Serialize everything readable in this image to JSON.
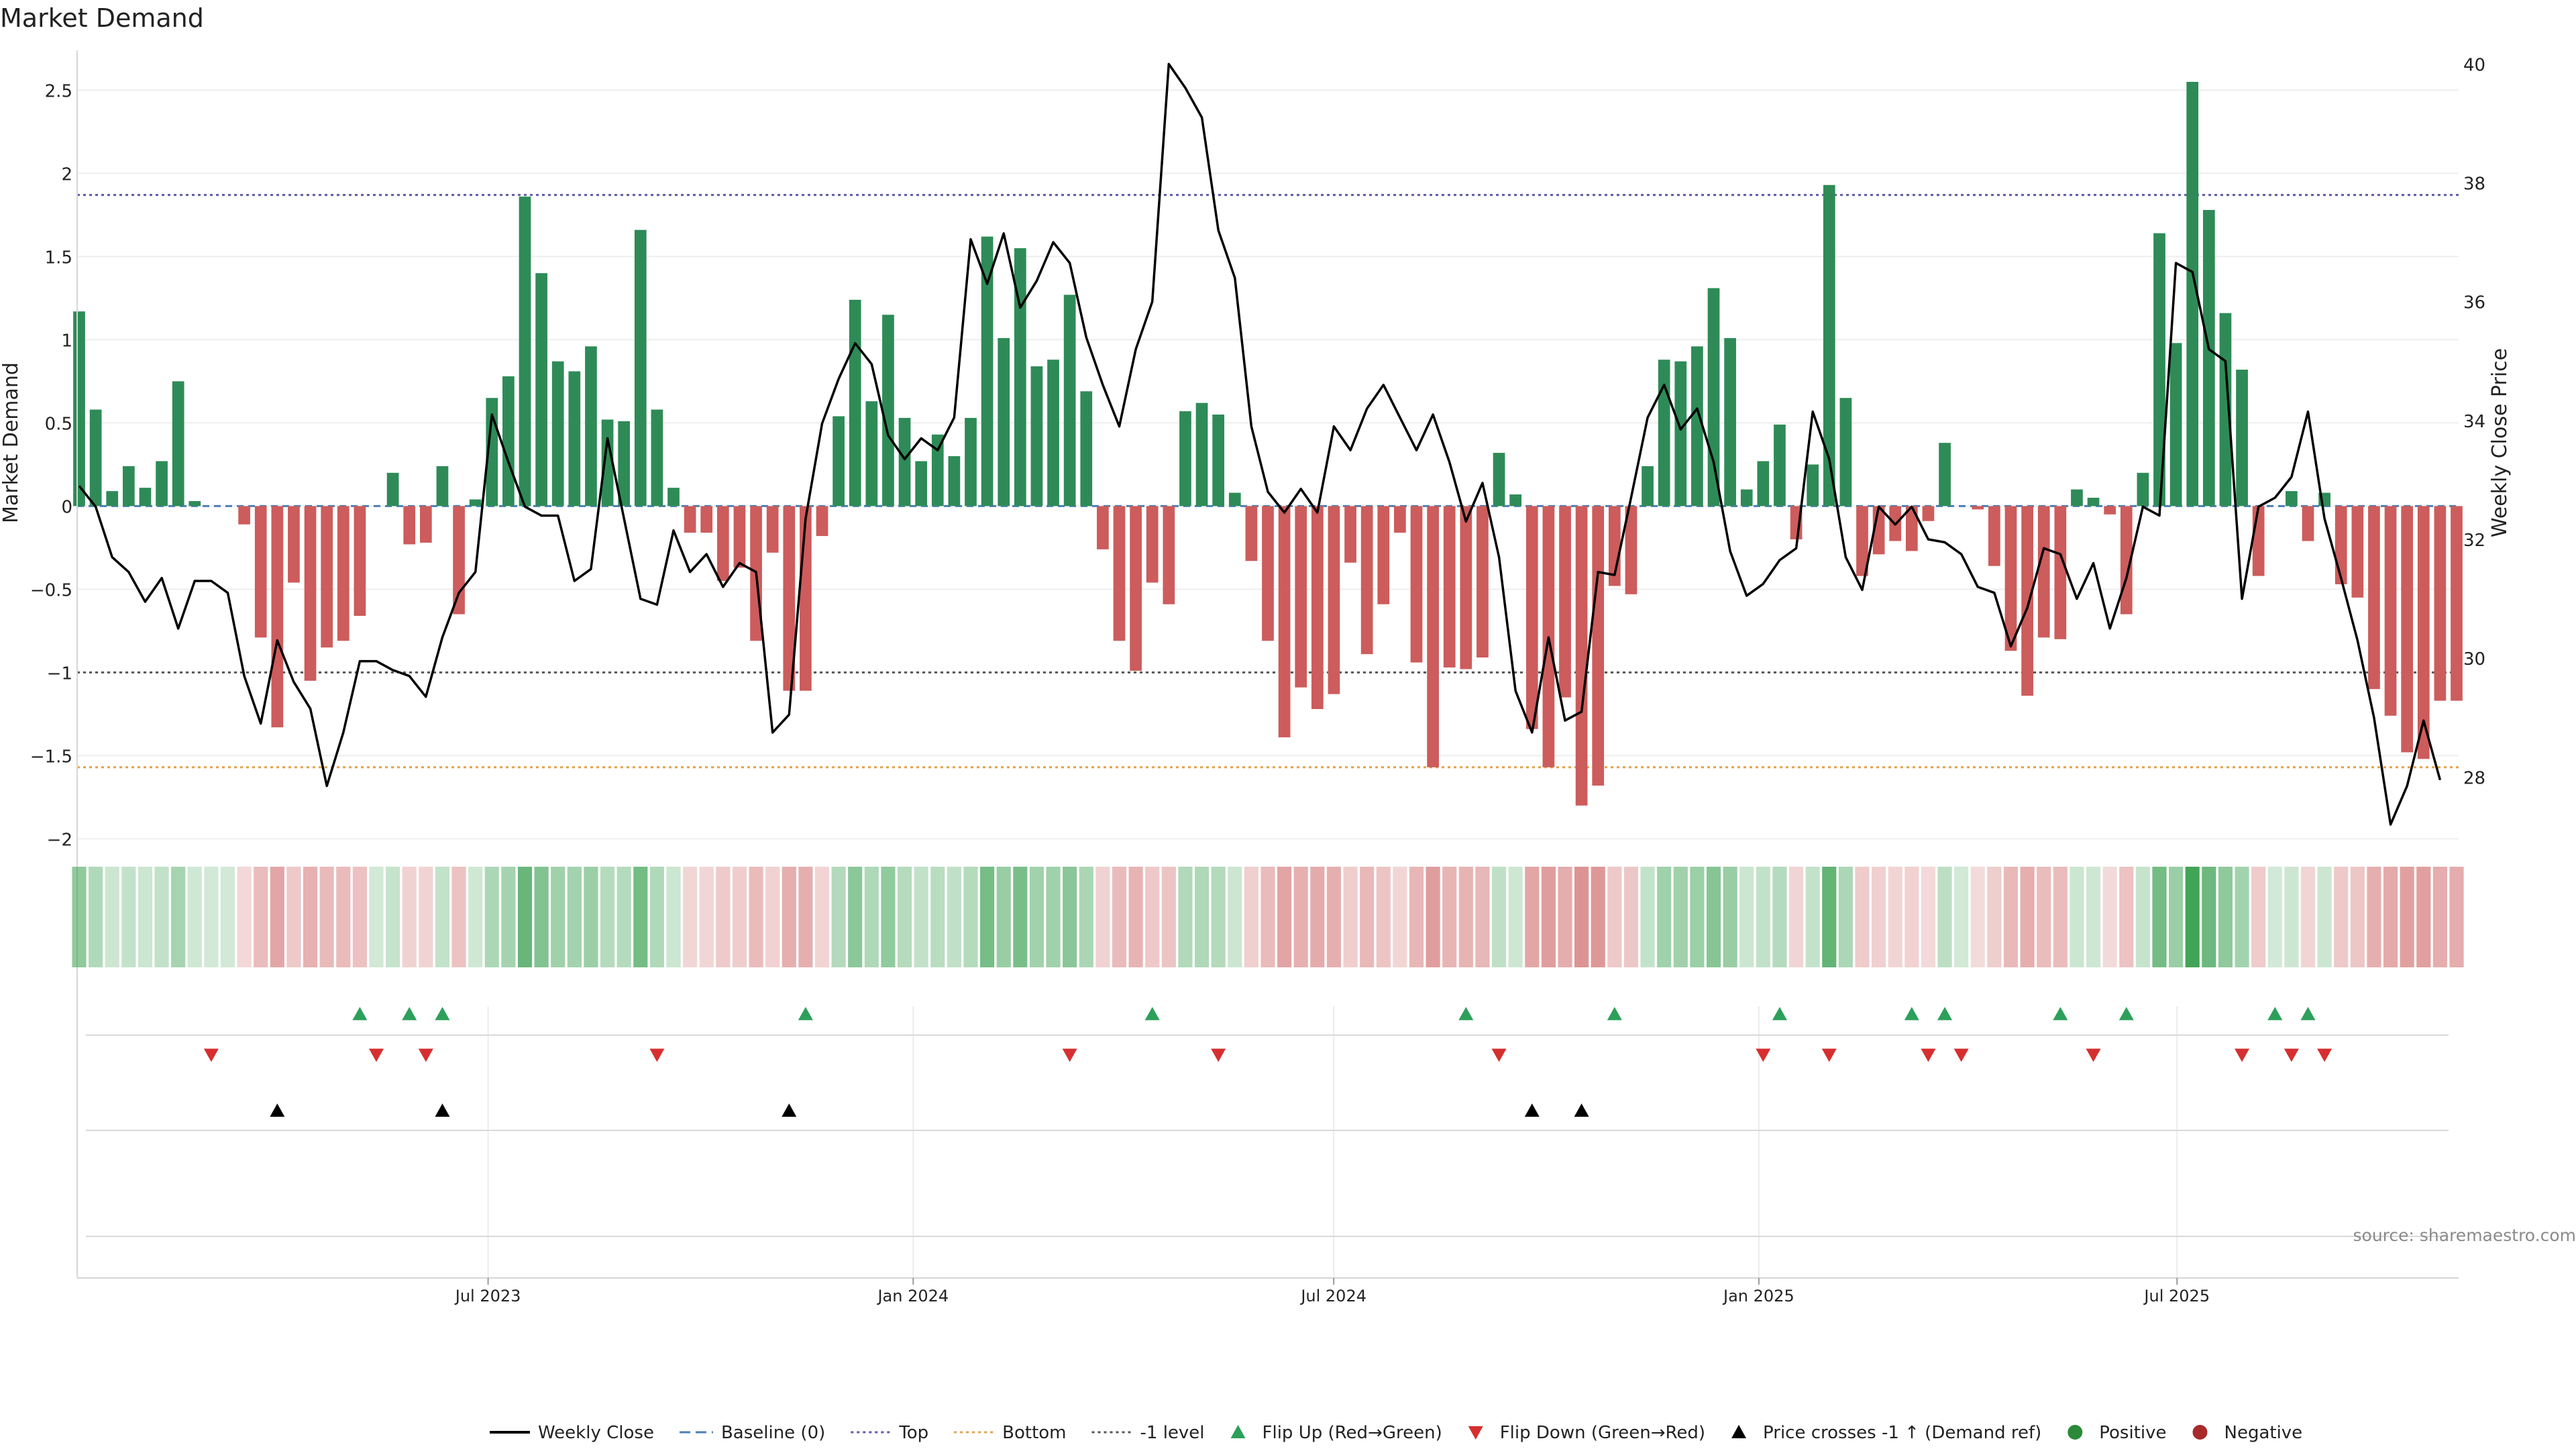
{
  "title": "Market Demand",
  "source": "source: sharemaestro.com",
  "chart_data": {
    "type": "bar",
    "left_axis": {
      "label": "Market Demand",
      "ticks": [
        -2,
        -1.5,
        -1,
        -0.5,
        0,
        0.5,
        1,
        1.5,
        2,
        2.5
      ],
      "tick_labels": [
        "−2",
        "−1.5",
        "−1",
        "−0.5",
        "0",
        "0.5",
        "1",
        "1.5",
        "2",
        "2.5"
      ],
      "ylim": [
        -2.2,
        2.8
      ]
    },
    "right_axis": {
      "label": "Weekly Close Price",
      "ticks": [
        28,
        30,
        32,
        34,
        36,
        38,
        40
      ],
      "tick_labels": [
        "28",
        "30",
        "32",
        "34",
        "36",
        "38",
        "40"
      ],
      "ylim": [
        26.4,
        40.4
      ]
    },
    "x_axis": {
      "start": "2023-01-05",
      "end": "2025-10-30",
      "tick_dates": [
        "2023-07-01",
        "2024-01-01",
        "2024-07-01",
        "2025-01-01",
        "2025-07-01"
      ],
      "tick_labels": [
        "Jul 2023",
        "Jan 2024",
        "Jul 2024",
        "Jan 2025",
        "Jul 2025"
      ]
    },
    "reference_lines": {
      "top": 1.87,
      "bottom": -1.57,
      "minus_one": -1.0,
      "baseline": 0
    },
    "series": [
      {
        "name": "Market Demand",
        "values": [
          1.17,
          0.58,
          0.09,
          0.24,
          0.11,
          0.27,
          0.75,
          0.03,
          0.0,
          0.0,
          -0.11,
          -0.79,
          -1.33,
          -0.46,
          -1.05,
          -0.85,
          -0.81,
          -0.66,
          0.0,
          0.2,
          -0.23,
          -0.22,
          0.24,
          -0.65,
          0.04,
          0.65,
          0.78,
          1.86,
          1.4,
          0.87,
          0.81,
          0.96,
          0.52,
          0.51,
          1.66,
          0.58,
          0.11,
          -0.16,
          -0.16,
          -0.45,
          -0.37,
          -0.81,
          -0.28,
          -1.11,
          -1.11,
          -0.18,
          0.54,
          1.24,
          0.63,
          1.15,
          0.53,
          0.27,
          0.43,
          0.3,
          0.53,
          1.62,
          1.01,
          1.55,
          0.84,
          0.88,
          1.27,
          0.69,
          -0.26,
          -0.81,
          -0.99,
          -0.46,
          -0.59,
          0.57,
          0.62,
          0.55,
          0.08,
          -0.33,
          -0.81,
          -1.39,
          -1.09,
          -1.22,
          -1.13,
          -0.34,
          -0.89,
          -0.59,
          -0.16,
          -0.94,
          -1.57,
          -0.97,
          -0.98,
          -0.91,
          0.32,
          0.07,
          -1.34,
          -1.57,
          -1.15,
          -1.8,
          -1.68,
          -0.48,
          -0.53,
          0.24,
          0.88,
          0.87,
          0.96,
          1.31,
          1.01,
          0.1,
          0.27,
          0.49,
          -0.2,
          0.25,
          1.93,
          0.65,
          -0.42,
          -0.29,
          -0.21,
          -0.27,
          -0.09,
          0.38,
          0.0,
          -0.02,
          -0.36,
          -0.87,
          -1.14,
          -0.79,
          -0.8,
          0.1,
          0.05,
          -0.05,
          -0.65,
          0.2,
          1.64,
          0.98,
          2.55,
          1.78,
          1.16,
          0.82,
          -0.42,
          0.0,
          0.09,
          -0.21,
          0.08,
          -0.47,
          -0.55,
          -1.1,
          -1.26,
          -1.48,
          -1.52,
          -1.17,
          -1.17
        ]
      },
      {
        "name": "Weekly Close",
        "values": [
          32.9,
          32.55,
          31.7,
          31.45,
          30.95,
          31.35,
          30.5,
          31.3,
          31.3,
          31.1,
          29.7,
          28.9,
          30.3,
          29.6,
          29.15,
          27.85,
          28.75,
          29.95,
          29.95,
          29.8,
          29.7,
          29.35,
          30.35,
          31.1,
          31.45,
          34.1,
          33.3,
          32.55,
          32.4,
          32.4,
          31.3,
          31.5,
          33.7,
          32.35,
          31.0,
          30.9,
          32.15,
          31.45,
          31.75,
          31.2,
          31.6,
          31.45,
          28.75,
          29.05,
          32.35,
          33.95,
          34.7,
          35.3,
          34.95,
          33.75,
          33.35,
          33.7,
          33.5,
          34.05,
          37.05,
          36.3,
          37.15,
          35.9,
          36.35,
          37.0,
          36.65,
          35.4,
          34.6,
          33.9,
          35.2,
          36.0,
          40.0,
          39.6,
          39.1,
          37.2,
          36.4,
          33.9,
          32.8,
          32.45,
          32.85,
          32.45,
          33.9,
          33.5,
          34.2,
          34.6,
          34.05,
          33.5,
          34.1,
          33.3,
          32.3,
          32.95,
          31.7,
          29.45,
          28.75,
          30.35,
          28.95,
          29.1,
          31.45,
          31.4,
          32.7,
          34.05,
          34.6,
          33.85,
          34.2,
          33.3,
          31.8,
          31.05,
          31.25,
          31.65,
          31.85,
          34.15,
          33.35,
          31.7,
          31.15,
          32.55,
          32.25,
          32.55,
          32.0,
          31.95,
          31.75,
          31.2,
          31.1,
          30.2,
          30.85,
          31.85,
          31.75,
          31.0,
          31.6,
          30.5,
          31.35,
          32.55,
          32.4,
          36.65,
          36.5,
          35.2,
          35.0,
          31.0,
          32.55,
          32.7,
          33.05,
          34.15,
          32.35,
          31.35,
          30.3,
          29.0,
          27.2,
          27.85,
          28.95,
          27.95
        ]
      }
    ],
    "flip_up_weeks": [
      17,
      20,
      22,
      44,
      65,
      84,
      93,
      103,
      111,
      113,
      120,
      124,
      133,
      135
    ],
    "flip_down_weeks": [
      8,
      18,
      21,
      35,
      60,
      69,
      86,
      102,
      106,
      112,
      114,
      122,
      131,
      134,
      136
    ],
    "price_cross_weeks": [
      12,
      22,
      43,
      88,
      91
    ],
    "legend": {
      "position": "bottom",
      "items": [
        {
          "label": "Weekly Close",
          "marker": "solid-line",
          "color": "#000000"
        },
        {
          "label": "Baseline (0)",
          "marker": "dash-line",
          "color": "#4a7fb5"
        },
        {
          "label": "Top",
          "marker": "dot-line",
          "color": "#5d5aa8"
        },
        {
          "label": "Bottom",
          "marker": "dot-line",
          "color": "#e3a24a"
        },
        {
          "label": "-1 level",
          "marker": "dot-line",
          "color": "#555555"
        },
        {
          "label": "Flip Up (Red→Green)",
          "marker": "triangle-up",
          "color": "#2ca05a"
        },
        {
          "label": "Flip Down (Green→Red)",
          "marker": "triangle-down",
          "color": "#d62f2f"
        },
        {
          "label": "Price crosses -1 ↑ (Demand ref)",
          "marker": "triangle-up",
          "color": "#000000"
        },
        {
          "label": "Positive",
          "marker": "circle",
          "color": "#2a8a3a"
        },
        {
          "label": "Negative",
          "marker": "circle",
          "color": "#a82a2a"
        }
      ]
    },
    "colors": {
      "positive_bar": "#2e8b57",
      "negative_bar": "#cd5c5c",
      "price_line": "#000000",
      "flip_up": "#2ca05a",
      "flip_down": "#d62f2f",
      "cross": "#000000",
      "top_line": "#5d5aa8",
      "bottom_line": "#e3a24a",
      "minus_one_line": "#555555",
      "baseline": "#4a7fb5"
    }
  }
}
